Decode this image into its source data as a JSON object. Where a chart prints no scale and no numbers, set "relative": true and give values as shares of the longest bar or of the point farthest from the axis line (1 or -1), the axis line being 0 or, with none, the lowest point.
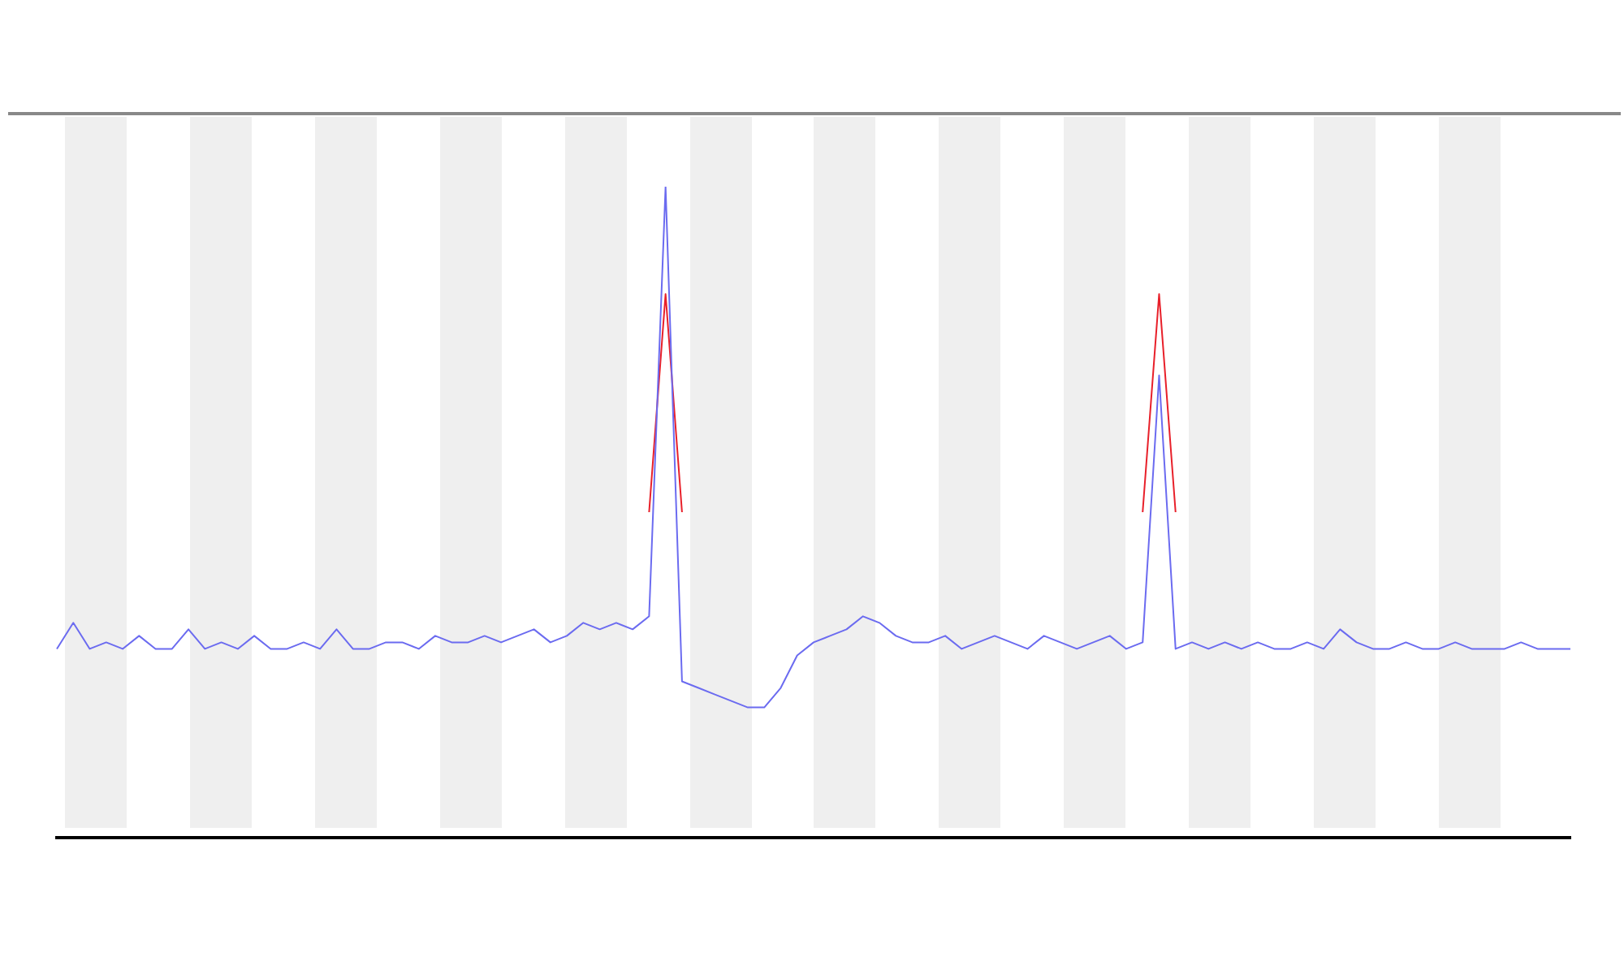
{
  "chart_data": {
    "type": "line",
    "relative": true,
    "grid": false,
    "legend": false,
    "marker": "none",
    "categories": [
      null,
      null,
      null,
      null,
      null,
      null,
      null,
      null,
      null,
      null,
      null,
      null,
      null,
      null,
      null,
      null,
      null,
      null,
      null,
      null,
      null,
      null,
      null,
      null,
      null,
      null,
      null,
      null,
      null,
      null,
      null,
      null,
      null,
      null,
      null,
      null,
      null,
      null,
      null,
      null,
      null,
      null,
      null,
      null,
      null,
      null,
      null,
      null,
      null,
      null,
      null,
      null,
      null,
      null,
      null,
      null,
      null,
      null,
      null,
      null,
      null,
      null,
      null,
      null,
      null,
      null,
      null,
      null,
      null,
      null,
      null,
      null,
      null,
      null,
      null,
      null,
      null,
      null,
      null,
      null,
      null,
      null,
      null,
      null,
      null,
      null,
      null,
      null,
      null,
      null,
      null,
      null,
      null
    ],
    "series": [
      {
        "color": "#6b6bf0",
        "values": [
          0.29,
          0.33,
          0.29,
          0.3,
          0.29,
          0.31,
          0.29,
          0.29,
          0.32,
          0.29,
          0.3,
          0.29,
          0.31,
          0.29,
          0.29,
          0.3,
          0.29,
          0.32,
          0.29,
          0.29,
          0.3,
          0.3,
          0.29,
          0.31,
          0.3,
          0.3,
          0.31,
          0.3,
          0.31,
          0.32,
          0.3,
          0.31,
          0.33,
          0.32,
          0.33,
          0.32,
          0.34,
          1.0,
          0.24,
          0.23,
          0.22,
          0.21,
          0.2,
          0.2,
          0.23,
          0.28,
          0.3,
          0.31,
          0.32,
          0.34,
          0.33,
          0.31,
          0.3,
          0.3,
          0.31,
          0.29,
          0.3,
          0.31,
          0.3,
          0.29,
          0.31,
          0.3,
          0.29,
          0.3,
          0.31,
          0.29,
          0.3,
          0.71,
          0.29,
          0.3,
          0.29,
          0.3,
          0.29,
          0.3,
          0.29,
          0.29,
          0.3,
          0.29,
          0.32,
          0.3,
          0.29,
          0.29,
          0.3,
          0.29,
          0.29,
          0.3,
          0.29,
          0.29,
          0.29,
          0.3,
          0.29,
          0.29,
          0.29
        ]
      },
      {
        "color": "#e8202a",
        "values": [
          null,
          null,
          null,
          null,
          null,
          null,
          null,
          null,
          null,
          null,
          null,
          null,
          null,
          null,
          null,
          null,
          null,
          null,
          null,
          null,
          null,
          null,
          null,
          null,
          null,
          null,
          null,
          null,
          null,
          null,
          null,
          null,
          null,
          null,
          null,
          null,
          0.5,
          0.835,
          0.5,
          null,
          null,
          null,
          null,
          null,
          null,
          null,
          null,
          null,
          null,
          null,
          null,
          null,
          null,
          null,
          null,
          null,
          null,
          null,
          null,
          null,
          null,
          null,
          null,
          null,
          null,
          null,
          0.5,
          0.835,
          0.5,
          null,
          null,
          null,
          null,
          null,
          null,
          null,
          null,
          null,
          null,
          null,
          null,
          null,
          null,
          null,
          null,
          null,
          null,
          null,
          null,
          null,
          null,
          null,
          null
        ]
      }
    ]
  }
}
